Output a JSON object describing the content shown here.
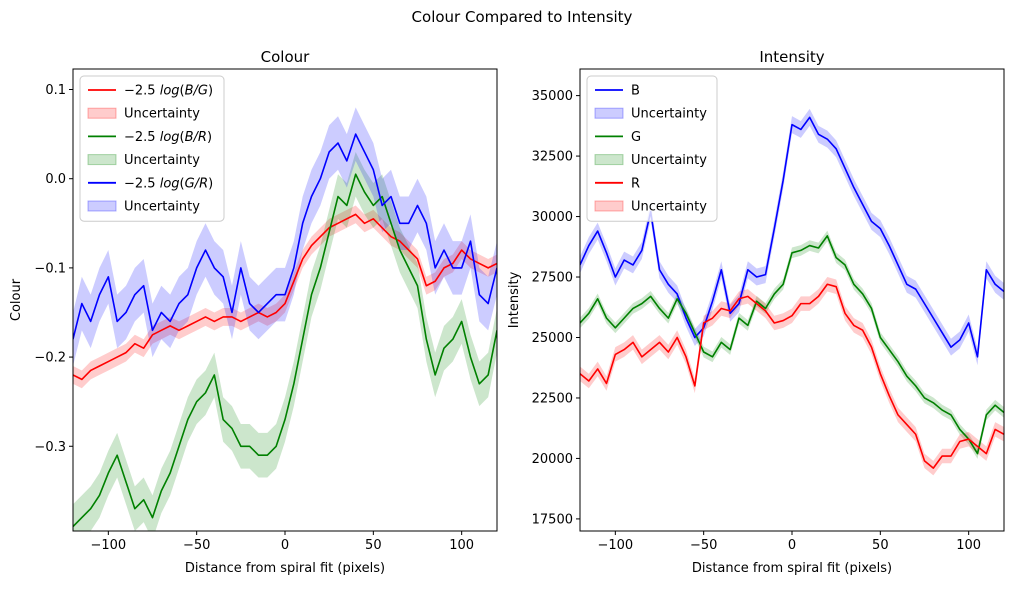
{
  "figure": {
    "suptitle": "Colour Compared to Intensity"
  },
  "chart_data": [
    {
      "type": "line",
      "title": "Colour",
      "xlabel": "Distance from spiral fit (pixels)",
      "ylabel": "Colour",
      "xlim": [
        -120,
        120
      ],
      "ylim": [
        -0.395,
        0.123
      ],
      "xticks": [
        -100,
        -50,
        0,
        50,
        100
      ],
      "xtick_labels": [
        "−100",
        "−50",
        "0",
        "50",
        "100"
      ],
      "yticks": [
        0.1,
        0.0,
        -0.1,
        -0.2,
        -0.3
      ],
      "ytick_labels": [
        "0.1",
        "0.0",
        "−0.1",
        "−0.2",
        "−0.3"
      ],
      "grid": false,
      "legend_placement": "upper-left",
      "x": [
        -120,
        -115,
        -110,
        -105,
        -100,
        -95,
        -90,
        -85,
        -80,
        -75,
        -70,
        -65,
        -60,
        -55,
        -50,
        -45,
        -40,
        -35,
        -30,
        -25,
        -20,
        -15,
        -10,
        -5,
        0,
        5,
        10,
        15,
        20,
        25,
        30,
        35,
        40,
        45,
        50,
        55,
        60,
        65,
        70,
        75,
        80,
        85,
        90,
        95,
        100,
        105,
        110,
        115,
        120
      ],
      "series": [
        {
          "name": "B/G",
          "color": "#ff0000",
          "band_color": "#ff0000",
          "band_label": "Uncertainty",
          "band_halfwidth": 0.01,
          "values": [
            -0.22,
            -0.225,
            -0.215,
            -0.21,
            -0.205,
            -0.2,
            -0.195,
            -0.185,
            -0.19,
            -0.175,
            -0.17,
            -0.165,
            -0.17,
            -0.165,
            -0.16,
            -0.155,
            -0.16,
            -0.155,
            -0.155,
            -0.16,
            -0.155,
            -0.15,
            -0.155,
            -0.15,
            -0.14,
            -0.115,
            -0.09,
            -0.075,
            -0.065,
            -0.055,
            -0.05,
            -0.045,
            -0.04,
            -0.05,
            -0.045,
            -0.055,
            -0.065,
            -0.07,
            -0.08,
            -0.09,
            -0.12,
            -0.115,
            -0.1,
            -0.095,
            -0.08,
            -0.09,
            -0.095,
            -0.1,
            -0.095
          ]
        },
        {
          "name": "B/R",
          "color": "#008000",
          "band_color": "#008000",
          "band_label": "Uncertainty",
          "band_halfwidth": 0.025,
          "values": [
            -0.39,
            -0.38,
            -0.37,
            -0.355,
            -0.33,
            -0.31,
            -0.34,
            -0.37,
            -0.36,
            -0.38,
            -0.35,
            -0.33,
            -0.3,
            -0.27,
            -0.25,
            -0.24,
            -0.22,
            -0.27,
            -0.28,
            -0.3,
            -0.3,
            -0.31,
            -0.31,
            -0.3,
            -0.27,
            -0.23,
            -0.18,
            -0.13,
            -0.1,
            -0.06,
            -0.02,
            -0.03,
            0.005,
            -0.015,
            -0.03,
            -0.02,
            -0.05,
            -0.08,
            -0.1,
            -0.12,
            -0.18,
            -0.22,
            -0.19,
            -0.18,
            -0.16,
            -0.2,
            -0.23,
            -0.22,
            -0.17
          ]
        },
        {
          "name": "G/R",
          "color": "#0000ff",
          "band_color": "#0000ff",
          "band_label": "Uncertainty",
          "band_halfwidth": 0.03,
          "values": [
            -0.18,
            -0.14,
            -0.16,
            -0.13,
            -0.11,
            -0.16,
            -0.15,
            -0.13,
            -0.12,
            -0.17,
            -0.15,
            -0.16,
            -0.14,
            -0.13,
            -0.1,
            -0.08,
            -0.1,
            -0.11,
            -0.15,
            -0.1,
            -0.14,
            -0.15,
            -0.14,
            -0.13,
            -0.13,
            -0.1,
            -0.05,
            -0.02,
            0.0,
            0.03,
            0.04,
            0.02,
            0.05,
            0.03,
            0.01,
            -0.03,
            -0.02,
            -0.05,
            -0.05,
            -0.03,
            -0.05,
            -0.1,
            -0.08,
            -0.1,
            -0.1,
            -0.07,
            -0.13,
            -0.14,
            -0.1
          ]
        }
      ],
      "legend": [
        {
          "kind": "line",
          "color": "#ff0000",
          "prefix": "−2.5",
          "fn": "log",
          "ratio": "B/G"
        },
        {
          "kind": "band",
          "color": "#ff0000",
          "label": "Uncertainty"
        },
        {
          "kind": "line",
          "color": "#008000",
          "prefix": "−2.5",
          "fn": "log",
          "ratio": "B/R"
        },
        {
          "kind": "band",
          "color": "#008000",
          "label": "Uncertainty"
        },
        {
          "kind": "line",
          "color": "#0000ff",
          "prefix": "−2.5",
          "fn": "log",
          "ratio": "G/R"
        },
        {
          "kind": "band",
          "color": "#0000ff",
          "label": "Uncertainty"
        }
      ]
    },
    {
      "type": "line",
      "title": "Intensity",
      "xlabel": "Distance from spiral fit (pixels)",
      "ylabel": "Intensity",
      "xlim": [
        -120,
        120
      ],
      "ylim": [
        17000,
        36100
      ],
      "xticks": [
        -100,
        -50,
        0,
        50,
        100
      ],
      "xtick_labels": [
        "−100",
        "−50",
        "0",
        "50",
        "100"
      ],
      "yticks": [
        17500,
        20000,
        22500,
        25000,
        27500,
        30000,
        32500,
        35000
      ],
      "ytick_labels": [
        "17500",
        "20000",
        "22500",
        "25000",
        "27500",
        "30000",
        "32500",
        "35000"
      ],
      "grid": false,
      "legend_placement": "upper-left",
      "x": [
        -120,
        -115,
        -110,
        -105,
        -100,
        -95,
        -90,
        -85,
        -80,
        -75,
        -70,
        -65,
        -60,
        -55,
        -50,
        -45,
        -40,
        -35,
        -30,
        -25,
        -20,
        -15,
        -10,
        -5,
        0,
        5,
        10,
        15,
        20,
        25,
        30,
        35,
        40,
        45,
        50,
        55,
        60,
        65,
        70,
        75,
        80,
        85,
        90,
        95,
        100,
        105,
        110,
        115,
        120
      ],
      "series": [
        {
          "name": "B",
          "color": "#0000ff",
          "band_color": "#0000ff",
          "band_label": "Uncertainty",
          "band_halfwidth": 350,
          "values": [
            28000,
            28800,
            29400,
            28500,
            27500,
            28200,
            28000,
            28600,
            30200,
            27800,
            27200,
            26800,
            25800,
            25000,
            25400,
            26500,
            27800,
            26000,
            26400,
            27800,
            27500,
            27600,
            29500,
            31500,
            33800,
            33600,
            34100,
            33400,
            33200,
            32800,
            32000,
            31200,
            30500,
            29800,
            29500,
            28800,
            28000,
            27200,
            27000,
            26400,
            25800,
            25200,
            24600,
            24900,
            25600,
            24200,
            27800,
            27200,
            26900
          ]
        },
        {
          "name": "G",
          "color": "#008000",
          "band_color": "#008000",
          "band_label": "Uncertainty",
          "band_halfwidth": 220,
          "values": [
            25600,
            26000,
            26600,
            25800,
            25400,
            25800,
            26200,
            26400,
            26700,
            26200,
            25800,
            26600,
            26000,
            25200,
            24400,
            24200,
            24800,
            24500,
            25800,
            25500,
            26500,
            26200,
            26800,
            27200,
            28500,
            28600,
            28800,
            28700,
            29200,
            28300,
            28000,
            27200,
            26800,
            26200,
            25000,
            24500,
            24000,
            23400,
            23000,
            22500,
            22300,
            22000,
            21800,
            21200,
            20800,
            20200,
            21800,
            22200,
            21900
          ]
        },
        {
          "name": "R",
          "color": "#ff0000",
          "band_color": "#ff0000",
          "band_label": "Uncertainty",
          "band_halfwidth": 300,
          "values": [
            23500,
            23200,
            23700,
            23100,
            24300,
            24500,
            24800,
            24200,
            24500,
            24800,
            24400,
            25000,
            24200,
            23000,
            25600,
            25800,
            26200,
            26100,
            26600,
            26700,
            26400,
            26100,
            25600,
            25700,
            25900,
            26400,
            26400,
            26700,
            27200,
            27100,
            26000,
            25500,
            25300,
            24600,
            23500,
            22600,
            21800,
            21400,
            21000,
            19900,
            19600,
            20100,
            20100,
            20700,
            20800,
            20500,
            20200,
            21200,
            21000
          ]
        }
      ],
      "legend": [
        {
          "kind": "line",
          "color": "#0000ff",
          "label": "B"
        },
        {
          "kind": "band",
          "color": "#0000ff",
          "label": "Uncertainty"
        },
        {
          "kind": "line",
          "color": "#008000",
          "label": "G"
        },
        {
          "kind": "band",
          "color": "#008000",
          "label": "Uncertainty"
        },
        {
          "kind": "line",
          "color": "#ff0000",
          "label": "R"
        },
        {
          "kind": "band",
          "color": "#ff0000",
          "label": "Uncertainty"
        }
      ]
    }
  ]
}
